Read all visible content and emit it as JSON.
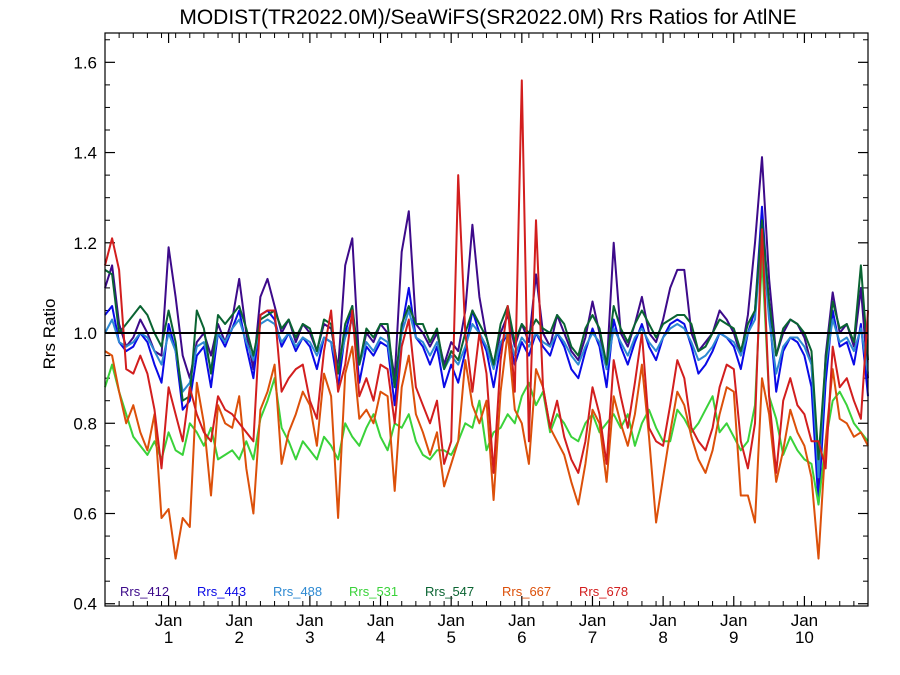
{
  "chart_data": {
    "type": "line",
    "title": "MODIST(TR2022.0M)/SeaWiFS(SR2022.0M)  Rrs Ratios for AtlNE",
    "xlabel": "",
    "ylabel": "Rrs Ratio",
    "ylim": [
      0.395,
      1.665
    ],
    "yticks": [
      0.4,
      0.6,
      0.8,
      1.0,
      1.2,
      1.4,
      1.6
    ],
    "ytick_labels": [
      "0.4",
      "0.6",
      "0.8",
      "1.0",
      "1.2",
      "1.4",
      "1.6"
    ],
    "xlim": [
      0,
      108
    ],
    "xticks": [
      {
        "pos": 9,
        "line1": "Jan",
        "line2": "1"
      },
      {
        "pos": 19,
        "line1": "Jan",
        "line2": "2"
      },
      {
        "pos": 29,
        "line1": "Jan",
        "line2": "3"
      },
      {
        "pos": 39,
        "line1": "Jan",
        "line2": "4"
      },
      {
        "pos": 49,
        "line1": "Jan",
        "line2": "5"
      },
      {
        "pos": 59,
        "line1": "Jan",
        "line2": "6"
      },
      {
        "pos": 69,
        "line1": "Jan",
        "line2": "7"
      },
      {
        "pos": 79,
        "line1": "Jan",
        "line2": "8"
      },
      {
        "pos": 89,
        "line1": "Jan",
        "line2": "9"
      },
      {
        "pos": 99,
        "line1": "Jan",
        "line2": "10"
      }
    ],
    "reference_line": 1.0,
    "grid": false,
    "legend_position": "bottom-left",
    "series": [
      {
        "name": "Rrs_412",
        "color": "#3d0a8a",
        "values": [
          1.1,
          1.15,
          1.02,
          0.97,
          0.99,
          1.03,
          1.0,
          0.96,
          0.95,
          1.19,
          1.08,
          0.95,
          0.9,
          0.98,
          1.0,
          0.95,
          1.02,
          0.98,
          1.03,
          1.12,
          1.0,
          0.92,
          1.08,
          1.12,
          1.06,
          1.0,
          1.03,
          0.98,
          1.02,
          1.0,
          0.96,
          1.02,
          1.01,
          0.92,
          1.15,
          1.21,
          0.93,
          1.0,
          0.98,
          1.02,
          1.0,
          0.9,
          1.18,
          1.27,
          1.02,
          1.0,
          0.97,
          1.0,
          0.93,
          0.98,
          0.96,
          1.05,
          1.24,
          1.08,
          0.99,
          0.93,
          1.0,
          1.04,
          0.97,
          1.02,
          0.98,
          1.13,
          1.0,
          0.97,
          1.04,
          1.0,
          0.96,
          0.94,
          0.99,
          1.07,
          1.0,
          0.92,
          1.2,
          1.0,
          0.97,
          1.02,
          1.08,
          1.0,
          0.98,
          1.03,
          1.1,
          1.14,
          1.14,
          1.0,
          0.96,
          0.98,
          1.0,
          1.05,
          1.03,
          1.0,
          0.95,
          1.04,
          1.2,
          1.39,
          1.12,
          0.95,
          1.0,
          1.03,
          1.02,
          0.99,
          0.93,
          0.64,
          0.95,
          1.09,
          1.0,
          1.02,
          0.97,
          1.1,
          0.9
        ]
      },
      {
        "name": "Rrs_443",
        "color": "#0a0ae6",
        "values": [
          1.04,
          1.06,
          0.98,
          0.96,
          0.97,
          1.0,
          0.98,
          0.93,
          0.89,
          1.02,
          0.96,
          0.83,
          0.85,
          0.95,
          0.97,
          0.88,
          1.0,
          0.97,
          1.01,
          1.05,
          0.97,
          0.9,
          1.04,
          1.05,
          1.03,
          0.97,
          1.0,
          0.96,
          0.99,
          0.97,
          0.92,
          0.99,
          0.98,
          0.88,
          1.0,
          1.06,
          0.89,
          0.97,
          0.95,
          0.98,
          0.97,
          0.84,
          1.01,
          1.1,
          0.99,
          0.97,
          0.93,
          0.97,
          0.88,
          0.93,
          0.89,
          0.96,
          1.05,
          1.0,
          0.96,
          0.88,
          0.97,
          1.0,
          0.93,
          0.98,
          0.95,
          1.0,
          0.97,
          0.95,
          1.0,
          0.97,
          0.92,
          0.9,
          0.96,
          1.01,
          0.97,
          0.88,
          1.03,
          0.97,
          0.93,
          0.98,
          1.02,
          0.97,
          0.94,
          0.99,
          1.02,
          1.03,
          1.02,
          0.97,
          0.91,
          0.93,
          0.96,
          1.0,
          0.99,
          0.97,
          0.92,
          1.0,
          1.05,
          1.28,
          1.05,
          0.87,
          0.96,
          0.99,
          0.98,
          0.95,
          0.88,
          0.62,
          0.89,
          1.05,
          0.97,
          0.98,
          0.93,
          1.02,
          0.86
        ]
      },
      {
        "name": "Rrs_488",
        "color": "#2e8ad2",
        "values": [
          1.0,
          1.03,
          0.98,
          0.97,
          0.98,
          1.0,
          0.99,
          0.96,
          0.93,
          1.0,
          0.96,
          0.87,
          0.89,
          0.97,
          0.98,
          0.92,
          1.0,
          0.98,
          1.01,
          1.03,
          0.98,
          0.94,
          1.02,
          1.03,
          1.02,
          0.98,
          1.0,
          0.97,
          0.99,
          0.98,
          0.95,
          0.99,
          0.98,
          0.92,
          0.99,
          1.03,
          0.93,
          0.98,
          0.96,
          0.99,
          0.98,
          0.88,
          1.0,
          1.05,
          0.99,
          0.98,
          0.95,
          0.98,
          0.92,
          0.95,
          0.93,
          0.97,
          1.02,
          1.0,
          0.97,
          0.92,
          0.98,
          1.0,
          0.95,
          0.99,
          0.97,
          1.0,
          0.98,
          0.97,
          1.0,
          0.98,
          0.95,
          0.93,
          0.97,
          1.0,
          0.98,
          0.92,
          1.01,
          0.98,
          0.95,
          0.99,
          1.01,
          0.98,
          0.96,
          0.99,
          1.01,
          1.02,
          1.01,
          0.98,
          0.94,
          0.95,
          0.97,
          1.0,
          0.99,
          0.98,
          0.95,
          1.0,
          1.03,
          1.22,
          1.03,
          0.91,
          0.97,
          0.99,
          0.99,
          0.97,
          0.93,
          0.68,
          0.93,
          1.03,
          0.98,
          0.99,
          0.96,
          1.01,
          0.91
        ]
      },
      {
        "name": "Rrs_531",
        "color": "#3ad23a",
        "values": [
          0.88,
          0.93,
          0.87,
          0.82,
          0.77,
          0.75,
          0.73,
          0.76,
          0.72,
          0.78,
          0.74,
          0.73,
          0.8,
          0.78,
          0.75,
          0.79,
          0.72,
          0.73,
          0.74,
          0.72,
          0.76,
          0.72,
          0.81,
          0.85,
          0.9,
          0.79,
          0.76,
          0.72,
          0.76,
          0.74,
          0.72,
          0.77,
          0.75,
          0.72,
          0.8,
          0.77,
          0.75,
          0.79,
          0.82,
          0.77,
          0.74,
          0.8,
          0.79,
          0.82,
          0.76,
          0.73,
          0.72,
          0.74,
          0.74,
          0.73,
          0.76,
          0.8,
          0.79,
          0.85,
          0.74,
          0.78,
          0.79,
          0.82,
          0.8,
          0.86,
          0.89,
          0.84,
          0.87,
          0.78,
          0.82,
          0.8,
          0.77,
          0.76,
          0.8,
          0.82,
          0.78,
          0.8,
          0.82,
          0.79,
          0.82,
          0.75,
          0.8,
          0.83,
          0.79,
          0.76,
          0.76,
          0.83,
          0.81,
          0.78,
          0.8,
          0.83,
          0.86,
          0.78,
          0.8,
          0.77,
          0.74,
          0.76,
          0.84,
          1.17,
          0.86,
          0.81,
          0.73,
          0.77,
          0.74,
          0.72,
          0.71,
          0.62,
          0.76,
          0.85,
          0.87,
          0.84,
          0.8,
          0.78,
          0.76
        ]
      },
      {
        "name": "Rrs_547",
        "color": "#0a6432",
        "values": [
          1.14,
          1.13,
          1.0,
          1.02,
          1.04,
          1.06,
          1.04,
          1.0,
          0.97,
          1.05,
          0.98,
          0.85,
          0.86,
          1.05,
          1.01,
          0.91,
          1.04,
          1.02,
          1.04,
          1.06,
          1.01,
          0.95,
          1.03,
          1.04,
          1.05,
          1.01,
          1.03,
          0.99,
          1.02,
          1.01,
          0.96,
          1.03,
          1.02,
          0.91,
          1.02,
          1.06,
          0.93,
          1.01,
          0.99,
          1.02,
          1.02,
          0.88,
          1.02,
          1.06,
          1.02,
          1.02,
          0.98,
          1.01,
          0.92,
          0.96,
          0.94,
          1.0,
          1.05,
          1.02,
          0.99,
          0.93,
          1.02,
          1.06,
          0.98,
          1.02,
          1.0,
          1.03,
          1.01,
          1.0,
          1.04,
          1.02,
          0.97,
          0.95,
          1.01,
          1.04,
          1.01,
          0.93,
          1.06,
          1.01,
          0.98,
          1.02,
          1.05,
          1.02,
          0.99,
          1.02,
          1.03,
          1.04,
          1.04,
          1.02,
          0.96,
          0.97,
          1.0,
          1.03,
          1.02,
          1.01,
          0.96,
          1.02,
          1.05,
          1.25,
          1.07,
          0.95,
          1.01,
          1.03,
          1.02,
          1.0,
          0.96,
          0.72,
          0.94,
          1.07,
          1.01,
          1.02,
          0.98,
          1.15,
          0.94
        ]
      },
      {
        "name": "Rrs_667",
        "color": "#dc500a",
        "values": [
          0.96,
          0.95,
          0.87,
          0.8,
          0.84,
          0.78,
          0.74,
          0.82,
          0.59,
          0.61,
          0.5,
          0.59,
          0.57,
          0.89,
          0.8,
          0.64,
          0.84,
          0.8,
          0.79,
          0.86,
          0.7,
          0.6,
          0.83,
          0.87,
          0.93,
          0.71,
          0.78,
          0.82,
          0.87,
          0.84,
          0.75,
          0.91,
          0.86,
          0.59,
          0.91,
          0.97,
          0.81,
          0.83,
          0.8,
          0.87,
          0.86,
          0.65,
          0.88,
          0.95,
          0.82,
          0.78,
          0.73,
          0.78,
          0.66,
          0.71,
          0.76,
          0.94,
          0.84,
          0.8,
          0.85,
          0.63,
          0.87,
          1.0,
          0.83,
          0.8,
          0.71,
          0.92,
          0.88,
          0.79,
          0.76,
          0.73,
          0.67,
          0.62,
          0.71,
          0.83,
          0.8,
          0.67,
          0.86,
          0.8,
          0.75,
          0.82,
          0.93,
          0.77,
          0.58,
          0.68,
          0.78,
          0.87,
          0.84,
          0.77,
          0.72,
          0.69,
          0.74,
          0.82,
          0.88,
          0.87,
          0.64,
          0.64,
          0.58,
          0.9,
          0.82,
          0.67,
          0.74,
          0.83,
          0.78,
          0.75,
          0.68,
          0.5,
          0.76,
          0.92,
          0.81,
          0.8,
          0.77,
          0.78,
          0.75
        ]
      },
      {
        "name": "Rrs_678",
        "color": "#d21e1e",
        "values": [
          1.15,
          1.21,
          1.14,
          0.92,
          0.91,
          0.95,
          0.91,
          0.83,
          0.7,
          0.88,
          0.82,
          0.76,
          0.88,
          0.82,
          0.78,
          0.76,
          0.86,
          0.83,
          0.82,
          0.8,
          0.78,
          0.76,
          1.04,
          1.05,
          1.05,
          0.87,
          0.9,
          0.92,
          0.93,
          0.85,
          0.81,
          0.96,
          1.05,
          0.87,
          0.93,
          1.05,
          0.86,
          0.9,
          0.85,
          0.93,
          0.92,
          0.8,
          0.97,
          1.03,
          0.88,
          0.84,
          0.8,
          0.85,
          0.71,
          0.76,
          1.35,
          1.0,
          0.87,
          1.0,
          0.91,
          0.69,
          0.94,
          1.06,
          0.87,
          1.56,
          0.76,
          1.25,
          0.88,
          0.79,
          0.85,
          0.77,
          0.72,
          0.69,
          0.76,
          0.88,
          0.82,
          0.71,
          0.94,
          0.86,
          0.79,
          0.89,
          1.0,
          0.79,
          0.76,
          0.75,
          0.84,
          0.94,
          0.9,
          0.79,
          0.76,
          0.74,
          0.79,
          0.88,
          0.93,
          0.92,
          0.76,
          0.7,
          0.8,
          1.23,
          0.86,
          0.69,
          0.85,
          0.9,
          0.84,
          0.82,
          0.76,
          0.76,
          0.7,
          0.97,
          0.88,
          0.9,
          0.85,
          0.81,
          1.05
        ]
      }
    ]
  }
}
